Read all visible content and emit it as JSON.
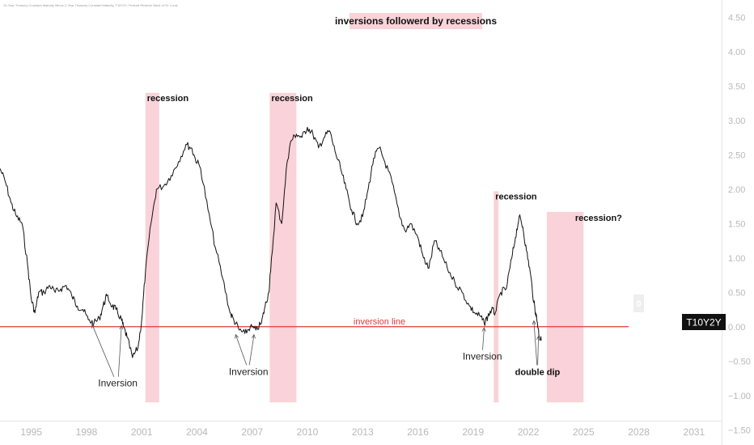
{
  "source_note": "10-Year Treasury Constant Maturity Minus 2-Year Treasury Constant Maturity, T10Y2Y, Federal Reserve Bank of St. Louis",
  "title": "inversions followerd by recessions",
  "symbol_badge": "T10Y2Y",
  "zero_badge": "0",
  "colors": {
    "line": "#111111",
    "inversion_line": "#e53935",
    "shade": "#f9d3d9",
    "title_bg": "#f9d3d9",
    "badge_bg": "#111111",
    "badge_text": "#ffffff",
    "zero_badge_bg": "#eeeeee",
    "tick_text": "#b8b8b8"
  },
  "chart_data": {
    "type": "line",
    "xlabel": "",
    "ylabel": "",
    "xlim": [
      1993.3,
      2032.5
    ],
    "ylim": [
      -1.72,
      4.75
    ],
    "x_ticks": [
      1995,
      1998,
      2001,
      2004,
      2007,
      2010,
      2013,
      2016,
      2019,
      2022,
      2025,
      2028,
      2031
    ],
    "y_ticks": [
      "4.50",
      "4.00",
      "3.50",
      "3.00",
      "2.50",
      "2.00",
      "1.50",
      "1.00",
      "0.50",
      "0.00",
      "−0.50",
      "−1.00",
      "−1.50"
    ],
    "y_tick_values": [
      4.5,
      4.0,
      3.5,
      3.0,
      2.5,
      2.0,
      1.5,
      1.0,
      0.5,
      0.0,
      -0.5,
      -1.0,
      -1.5
    ],
    "grid": false,
    "legend": "none",
    "series": [
      {
        "x": [
          1993.3,
          1993.6,
          1993.9,
          1994.2,
          1994.5,
          1994.8,
          1995.0,
          1995.2,
          1995.4,
          1995.7,
          1996.0,
          1996.3,
          1996.6,
          1996.9,
          1997.2,
          1997.5,
          1997.8,
          1998.1,
          1998.4,
          1998.7,
          1998.9,
          1999.1,
          1999.4,
          1999.6,
          1999.9,
          2000.0,
          2000.2,
          2000.5,
          2000.8,
          2001.0,
          2001.2,
          2001.5,
          2001.8,
          2002.2,
          2002.6,
          2003.0,
          2003.4,
          2003.7,
          2003.9,
          2004.2,
          2004.6,
          2005.0,
          2005.4,
          2005.8,
          2006.0,
          2006.3,
          2006.6,
          2006.9,
          2007.2,
          2007.5,
          2007.7,
          2007.9,
          2008.0,
          2008.3,
          2008.6,
          2008.9,
          2009.1,
          2009.4,
          2009.7,
          2010.0,
          2010.3,
          2010.6,
          2010.9,
          2011.2,
          2011.5,
          2011.8,
          2012.1,
          2012.4,
          2012.7,
          2013.0,
          2013.3,
          2013.6,
          2013.9,
          2014.2,
          2014.6,
          2015.0,
          2015.3,
          2015.6,
          2016.0,
          2016.3,
          2016.6,
          2016.9,
          2017.2,
          2017.6,
          2018.0,
          2018.4,
          2018.8,
          2019.1,
          2019.4,
          2019.6,
          2019.8,
          2020.0,
          2020.2,
          2020.5,
          2020.8,
          2021.1,
          2021.3,
          2021.5,
          2021.7,
          2021.9,
          2022.1,
          2022.3,
          2022.4,
          2022.5,
          2022.6,
          2022.7
        ],
        "y": [
          2.3,
          2.1,
          1.8,
          1.6,
          1.5,
          0.9,
          0.4,
          0.2,
          0.5,
          0.5,
          0.6,
          0.5,
          0.55,
          0.6,
          0.45,
          0.3,
          0.25,
          0.1,
          0.05,
          0.12,
          0.3,
          0.45,
          0.3,
          0.25,
          0.1,
          0.0,
          -0.15,
          -0.45,
          -0.3,
          0.1,
          0.8,
          1.5,
          2.0,
          2.05,
          2.2,
          2.4,
          2.65,
          2.6,
          2.45,
          2.3,
          1.7,
          1.15,
          0.7,
          0.2,
          0.1,
          -0.05,
          -0.1,
          0.0,
          -0.05,
          0.05,
          0.3,
          0.5,
          0.8,
          1.8,
          1.5,
          2.4,
          2.7,
          2.8,
          2.75,
          2.9,
          2.8,
          2.6,
          2.75,
          2.85,
          2.55,
          2.3,
          2.0,
          1.7,
          1.5,
          1.6,
          2.0,
          2.45,
          2.6,
          2.4,
          2.1,
          1.6,
          1.4,
          1.5,
          1.3,
          1.0,
          0.85,
          1.25,
          1.1,
          0.85,
          0.65,
          0.5,
          0.3,
          0.2,
          0.15,
          0.05,
          0.15,
          0.25,
          0.2,
          0.5,
          0.55,
          1.0,
          1.3,
          1.6,
          1.45,
          1.1,
          0.8,
          0.35,
          0.2,
          0.05,
          -0.15,
          -0.2
        ]
      }
    ],
    "reference_line": {
      "y": 0,
      "label": "inversion line"
    },
    "shaded_regions": [
      {
        "x0": 2001.2,
        "x1": 2001.95,
        "y0": -1.1,
        "y1": 3.4,
        "label": "recession"
      },
      {
        "x0": 2007.95,
        "x1": 2009.4,
        "y0": -1.1,
        "y1": 3.4,
        "label": "recession"
      },
      {
        "x0": 2020.12,
        "x1": 2020.38,
        "y0": -1.1,
        "y1": 1.97,
        "label": "recession"
      },
      {
        "x0": 2023.0,
        "x1": 2025.0,
        "y0": -1.1,
        "y1": 1.67,
        "label": "recession?"
      }
    ],
    "annotations": [
      {
        "text": "Inversion",
        "x": 1999.7,
        "y": -0.87,
        "arrows": [
          [
            1998.3,
            0.07
          ],
          [
            1999.9,
            0.05
          ]
        ]
      },
      {
        "text": "Inversion",
        "x": 2006.8,
        "y": -0.7,
        "arrows": [
          [
            2006.1,
            -0.08
          ],
          [
            2007.1,
            -0.08
          ]
        ]
      },
      {
        "text": "Inversion",
        "x": 2019.5,
        "y": -0.48,
        "arrows": [
          [
            2019.6,
            0.02
          ]
        ]
      },
      {
        "text": "double dip",
        "x": 2022.5,
        "y": -0.7,
        "arrows": [
          [
            2022.3,
            0.12
          ],
          [
            2022.55,
            -0.1
          ]
        ]
      }
    ]
  }
}
